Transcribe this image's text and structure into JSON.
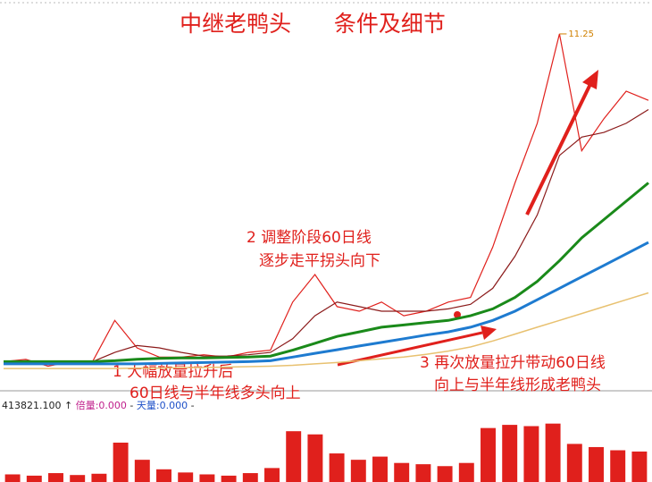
{
  "chart_data": [
    {
      "type": "line",
      "title": "中继老鸭头      条件及细节",
      "categories": [
        null,
        null,
        null,
        null,
        null,
        null,
        null,
        null,
        null,
        null,
        null,
        null,
        null,
        null,
        null,
        null,
        null,
        null,
        null,
        null,
        null,
        null,
        null,
        null,
        null,
        null,
        null,
        null,
        null,
        null
      ],
      "series": [
        {
          "color": "#e0201c",
          "values": [
            4.1,
            4.15,
            4.0,
            4.1,
            4.1,
            5.0,
            4.4,
            4.2,
            4.2,
            4.25,
            4.2,
            4.3,
            4.35,
            5.4,
            6.0,
            5.3,
            5.2,
            5.4,
            5.1,
            5.2,
            5.4,
            5.5,
            6.6,
            8.0,
            9.3,
            11.25,
            8.7,
            9.4,
            10.0,
            9.8
          ],
          "value_labels": [
            null,
            null,
            null,
            null,
            null,
            null,
            null,
            null,
            null,
            null,
            null,
            null,
            null,
            null,
            null,
            null,
            null,
            null,
            null,
            null,
            null,
            null,
            null,
            null,
            null,
            "11.25",
            null,
            null,
            null,
            null
          ]
        },
        {
          "color": "#8b1a1a",
          "values": [
            4.1,
            4.12,
            4.1,
            4.08,
            4.1,
            4.3,
            4.45,
            4.4,
            4.3,
            4.22,
            4.22,
            4.25,
            4.3,
            4.6,
            5.1,
            5.4,
            5.3,
            5.2,
            5.2,
            5.2,
            5.25,
            5.35,
            5.7,
            6.4,
            7.3,
            8.6,
            9.0,
            9.1,
            9.3,
            9.6
          ]
        },
        {
          "color": "#1a8a1a",
          "values": [
            4.1,
            4.1,
            4.1,
            4.1,
            4.1,
            4.12,
            4.15,
            4.17,
            4.18,
            4.18,
            4.19,
            4.2,
            4.22,
            4.35,
            4.5,
            4.65,
            4.75,
            4.85,
            4.9,
            4.95,
            5.0,
            5.1,
            5.25,
            5.5,
            5.85,
            6.3,
            6.8,
            7.2,
            7.6,
            8.0
          ]
        },
        {
          "color": "#1e7bd0",
          "values": [
            4.05,
            4.05,
            4.05,
            4.05,
            4.05,
            4.05,
            4.05,
            4.06,
            4.07,
            4.08,
            4.09,
            4.1,
            4.12,
            4.2,
            4.28,
            4.36,
            4.44,
            4.52,
            4.6,
            4.68,
            4.75,
            4.85,
            5.0,
            5.2,
            5.45,
            5.7,
            5.95,
            6.2,
            6.45,
            6.7
          ]
        },
        {
          "color": "#e8c170",
          "values": [
            3.95,
            3.95,
            3.95,
            3.95,
            3.95,
            3.95,
            3.96,
            3.96,
            3.97,
            3.97,
            3.98,
            3.99,
            4.0,
            4.02,
            4.05,
            4.08,
            4.12,
            4.16,
            4.2,
            4.26,
            4.33,
            4.42,
            4.55,
            4.7,
            4.85,
            5.0,
            5.15,
            5.3,
            5.45,
            5.6
          ]
        }
      ],
      "ylim": [
        3.6,
        11.6
      ],
      "annotations": [
        "1 大幅放量拉升后",
        "60日线与半年线多头向上",
        "2 调整阶段60日线",
        "逐步走平拐头向下",
        "3 再次放量拉升带动60日线",
        "向上与半年线形成老鸭头"
      ]
    },
    {
      "type": "bar",
      "header": [
        "413821.100",
        "↑",
        "倍量:0.000",
        "-",
        "天量:0.000",
        "-"
      ],
      "categories": [
        null,
        null,
        null,
        null,
        null,
        null,
        null,
        null,
        null,
        null,
        null,
        null,
        null,
        null,
        null,
        null,
        null,
        null,
        null,
        null,
        null,
        null,
        null,
        null,
        null,
        null,
        null,
        null,
        null,
        null
      ],
      "values": [
        12,
        10,
        14,
        11,
        13,
        62,
        35,
        20,
        15,
        12,
        10,
        14,
        22,
        80,
        75,
        45,
        35,
        40,
        30,
        28,
        25,
        30,
        85,
        90,
        88,
        92,
        60,
        55,
        50,
        48
      ],
      "color": "#e0201c",
      "ylim": [
        0,
        100
      ]
    }
  ]
}
